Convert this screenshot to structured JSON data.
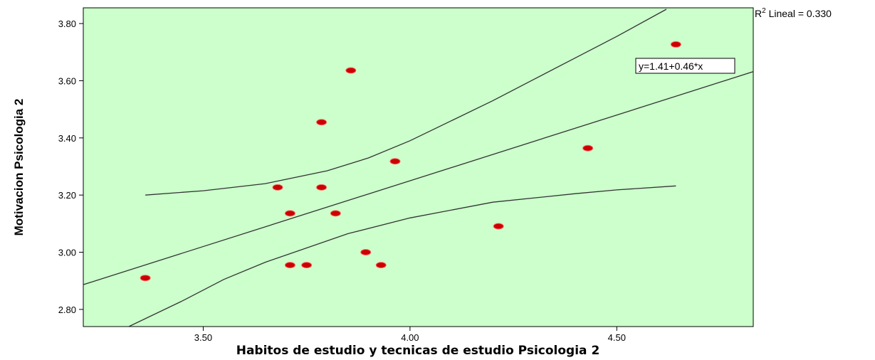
{
  "chart_data": {
    "type": "scatter",
    "title": "",
    "xlabel": "Habitos de estudio y tecnicas de estudio Psicologia 2",
    "ylabel": "Motivacion Psicologia 2",
    "xlim": [
      3.21,
      4.83
    ],
    "ylim": [
      2.74,
      3.855
    ],
    "x_ticks": [
      3.5,
      4.0,
      4.5
    ],
    "x_tick_labels": [
      "3.50",
      "4.00",
      "4.50"
    ],
    "y_ticks": [
      2.8,
      3.0,
      3.2,
      3.4,
      3.6,
      3.8
    ],
    "y_tick_labels": [
      "2.80",
      "3.00",
      "3.20",
      "3.40",
      "3.60",
      "3.80"
    ],
    "grid": false,
    "plot_background": "#ccffcc",
    "point_color": "#cc0000",
    "line_color": "#333333",
    "points": [
      {
        "x": 3.36,
        "y": 2.91
      },
      {
        "x": 3.68,
        "y": 3.227
      },
      {
        "x": 3.71,
        "y": 3.136
      },
      {
        "x": 3.71,
        "y": 2.955
      },
      {
        "x": 3.75,
        "y": 2.955
      },
      {
        "x": 3.786,
        "y": 3.455
      },
      {
        "x": 3.786,
        "y": 3.227
      },
      {
        "x": 3.82,
        "y": 3.136
      },
      {
        "x": 3.857,
        "y": 3.636
      },
      {
        "x": 3.893,
        "y": 3.0
      },
      {
        "x": 3.93,
        "y": 2.955
      },
      {
        "x": 3.964,
        "y": 3.318
      },
      {
        "x": 4.214,
        "y": 3.091
      },
      {
        "x": 4.43,
        "y": 3.364
      },
      {
        "x": 4.643,
        "y": 3.727
      }
    ],
    "fit_line": {
      "intercept": 1.41,
      "slope": 0.46
    },
    "ci_upper": [
      {
        "x": 3.36,
        "y": 3.2
      },
      {
        "x": 3.5,
        "y": 3.215
      },
      {
        "x": 3.65,
        "y": 3.24
      },
      {
        "x": 3.8,
        "y": 3.285
      },
      {
        "x": 3.9,
        "y": 3.33
      },
      {
        "x": 4.0,
        "y": 3.39
      },
      {
        "x": 4.1,
        "y": 3.46
      },
      {
        "x": 4.2,
        "y": 3.53
      },
      {
        "x": 4.3,
        "y": 3.605
      },
      {
        "x": 4.4,
        "y": 3.68
      },
      {
        "x": 4.5,
        "y": 3.755
      },
      {
        "x": 4.62,
        "y": 3.85
      }
    ],
    "ci_lower": [
      {
        "x": 3.32,
        "y": 2.74
      },
      {
        "x": 3.45,
        "y": 2.83
      },
      {
        "x": 3.55,
        "y": 2.905
      },
      {
        "x": 3.65,
        "y": 2.965
      },
      {
        "x": 3.75,
        "y": 3.015
      },
      {
        "x": 3.85,
        "y": 3.065
      },
      {
        "x": 4.0,
        "y": 3.12
      },
      {
        "x": 4.2,
        "y": 3.175
      },
      {
        "x": 4.4,
        "y": 3.205
      },
      {
        "x": 4.5,
        "y": 3.218
      },
      {
        "x": 4.643,
        "y": 3.232
      }
    ],
    "equation_label": "y=1.41+0.46*x",
    "r2_prefix": "R",
    "r2_sup": "2",
    "r2_rest": " Lineal = 0.330"
  }
}
